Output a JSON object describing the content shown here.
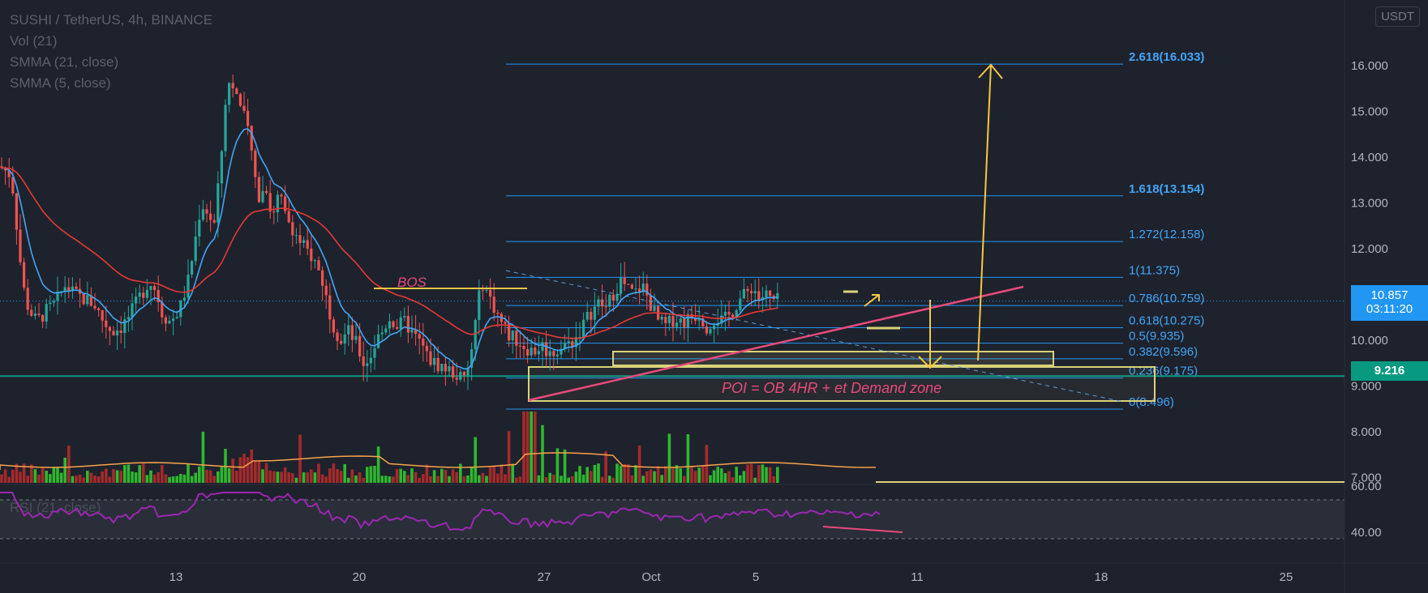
{
  "header": {
    "symbol_line": "SUSHI / TetherUS, 4h, BINANCE",
    "indicators": [
      "Vol (21)",
      "SMMA (21, close)",
      "SMMA (5, close)"
    ],
    "currency": "USDT"
  },
  "price_axis": {
    "ticks": [
      "16.000",
      "15.000",
      "14.000",
      "13.000",
      "12.000",
      "10.000",
      "9.000",
      "8.000",
      "7.000"
    ],
    "last_price": "10.857",
    "countdown": "03:11:20",
    "level_tag": "9.216"
  },
  "rsi_axis": {
    "ticks": [
      "60.00",
      "40.00"
    ]
  },
  "time_axis": {
    "labels": [
      "13",
      "20",
      "27",
      "Oct",
      "5",
      "11",
      "18",
      "25"
    ]
  },
  "annotations": {
    "bos": "BOS",
    "poi": "POI   =  OB  4HR   +  et Demand zone",
    "rsi_label": "RSI (21, close)"
  },
  "colors": {
    "background": "#1e222d",
    "bull": "#26a69a",
    "bear": "#ef5350",
    "vol_bull": "#2eb82e",
    "vol_bear": "#a52a2a",
    "smma5": "#42a5f5",
    "smma21": "#e53935",
    "fib": "#2196f3",
    "fib_label": "#42a5f5",
    "zone": "#d9d27a",
    "arrow": "#f4c842",
    "trendline": "#e84a7a",
    "level_line": "#089981",
    "rsi": "#9c27b0"
  },
  "chart_data": {
    "type": "candlestick",
    "title": "SUSHI / TetherUS, 4h, BINANCE",
    "yrange": [
      6.6,
      17.0
    ],
    "fib_levels": [
      {
        "ratio": "2.618",
        "value": 16.033,
        "label": "2.618(16.033)"
      },
      {
        "ratio": "1.618",
        "value": 13.154,
        "label": "1.618(13.154)"
      },
      {
        "ratio": "1.272",
        "value": 12.158,
        "label": "1.272(12.158)"
      },
      {
        "ratio": "1",
        "value": 11.375,
        "label": "1(11.375)"
      },
      {
        "ratio": "0.786",
        "value": 10.759,
        "label": "0.786(10.759)"
      },
      {
        "ratio": "0.618",
        "value": 10.275,
        "label": "0.618(10.275)"
      },
      {
        "ratio": "0.5",
        "value": 9.935,
        "label": "0.5(9.935)"
      },
      {
        "ratio": "0.382",
        "value": 9.596,
        "label": "0.382(9.596)"
      },
      {
        "ratio": "0.236",
        "value": 9.175,
        "label": "0.236(9.175)"
      },
      {
        "ratio": "0",
        "value": 8.496,
        "label": "0(8.496)"
      }
    ],
    "last_price": 10.857,
    "horizontal_level": 9.216,
    "close_path": [
      [
        0,
        13.8
      ],
      [
        14,
        13.6
      ],
      [
        20,
        12.6
      ],
      [
        28,
        11.2
      ],
      [
        35,
        10.7
      ],
      [
        45,
        10.4
      ],
      [
        55,
        10.6
      ],
      [
        68,
        10.8
      ],
      [
        80,
        11.2
      ],
      [
        92,
        11.0
      ],
      [
        104,
        10.9
      ],
      [
        116,
        10.8
      ],
      [
        128,
        10.4
      ],
      [
        138,
        10.2
      ],
      [
        150,
        10.3
      ],
      [
        162,
        10.6
      ],
      [
        174,
        11.0
      ],
      [
        184,
        11.3
      ],
      [
        192,
        11.1
      ],
      [
        200,
        10.6
      ],
      [
        210,
        10.4
      ],
      [
        222,
        10.7
      ],
      [
        232,
        11.3
      ],
      [
        240,
        12.1
      ],
      [
        248,
        13.0
      ],
      [
        256,
        12.8
      ],
      [
        264,
        12.5
      ],
      [
        272,
        13.8
      ],
      [
        278,
        15.3
      ],
      [
        284,
        15.7
      ],
      [
        290,
        15.5
      ],
      [
        296,
        15.1
      ],
      [
        302,
        14.8
      ],
      [
        308,
        14.4
      ],
      [
        314,
        13.6
      ],
      [
        320,
        13.1
      ],
      [
        328,
        13.4
      ],
      [
        336,
        12.6
      ],
      [
        344,
        13.2
      ],
      [
        352,
        12.7
      ],
      [
        360,
        12.5
      ],
      [
        368,
        12.2
      ],
      [
        376,
        12.0
      ],
      [
        386,
        11.8
      ],
      [
        396,
        11.4
      ],
      [
        404,
        10.8
      ],
      [
        412,
        10.3
      ],
      [
        420,
        10.0
      ],
      [
        430,
        10.2
      ],
      [
        440,
        9.9
      ],
      [
        448,
        9.5
      ],
      [
        456,
        9.6
      ],
      [
        464,
        10.0
      ],
      [
        472,
        10.2
      ],
      [
        480,
        10.5
      ],
      [
        490,
        10.3
      ],
      [
        500,
        10.4
      ],
      [
        510,
        10.1
      ],
      [
        520,
        9.9
      ],
      [
        528,
        9.6
      ],
      [
        536,
        9.5
      ],
      [
        548,
        9.4
      ],
      [
        558,
        9.3
      ],
      [
        566,
        9.2
      ],
      [
        574,
        9.1
      ],
      [
        580,
        9.6
      ],
      [
        588,
        10.6
      ],
      [
        594,
        11.3
      ],
      [
        602,
        11.0
      ],
      [
        610,
        10.7
      ],
      [
        618,
        10.4
      ],
      [
        628,
        10.1
      ],
      [
        638,
        10.0
      ],
      [
        648,
        9.85
      ],
      [
        658,
        9.75
      ],
      [
        668,
        9.9
      ],
      [
        678,
        9.7
      ],
      [
        688,
        9.8
      ],
      [
        698,
        9.9
      ],
      [
        708,
        10.0
      ],
      [
        718,
        10.3
      ],
      [
        728,
        10.6
      ],
      [
        738,
        10.8
      ],
      [
        748,
        10.7
      ],
      [
        758,
        11.1
      ],
      [
        766,
        11.3
      ],
      [
        774,
        11.1
      ],
      [
        782,
        11.0
      ],
      [
        792,
        11.2
      ],
      [
        802,
        10.8
      ],
      [
        812,
        10.4
      ],
      [
        822,
        10.3
      ],
      [
        832,
        10.5
      ],
      [
        842,
        10.4
      ],
      [
        852,
        10.5
      ],
      [
        862,
        10.6
      ],
      [
        872,
        10.3
      ],
      [
        882,
        10.5
      ],
      [
        892,
        10.4
      ],
      [
        902,
        10.6
      ],
      [
        912,
        10.9
      ],
      [
        920,
        11.0
      ],
      [
        928,
        11.2
      ],
      [
        936,
        10.9
      ],
      [
        944,
        11.0
      ],
      [
        952,
        10.85
      ],
      [
        960,
        10.86
      ]
    ]
  }
}
